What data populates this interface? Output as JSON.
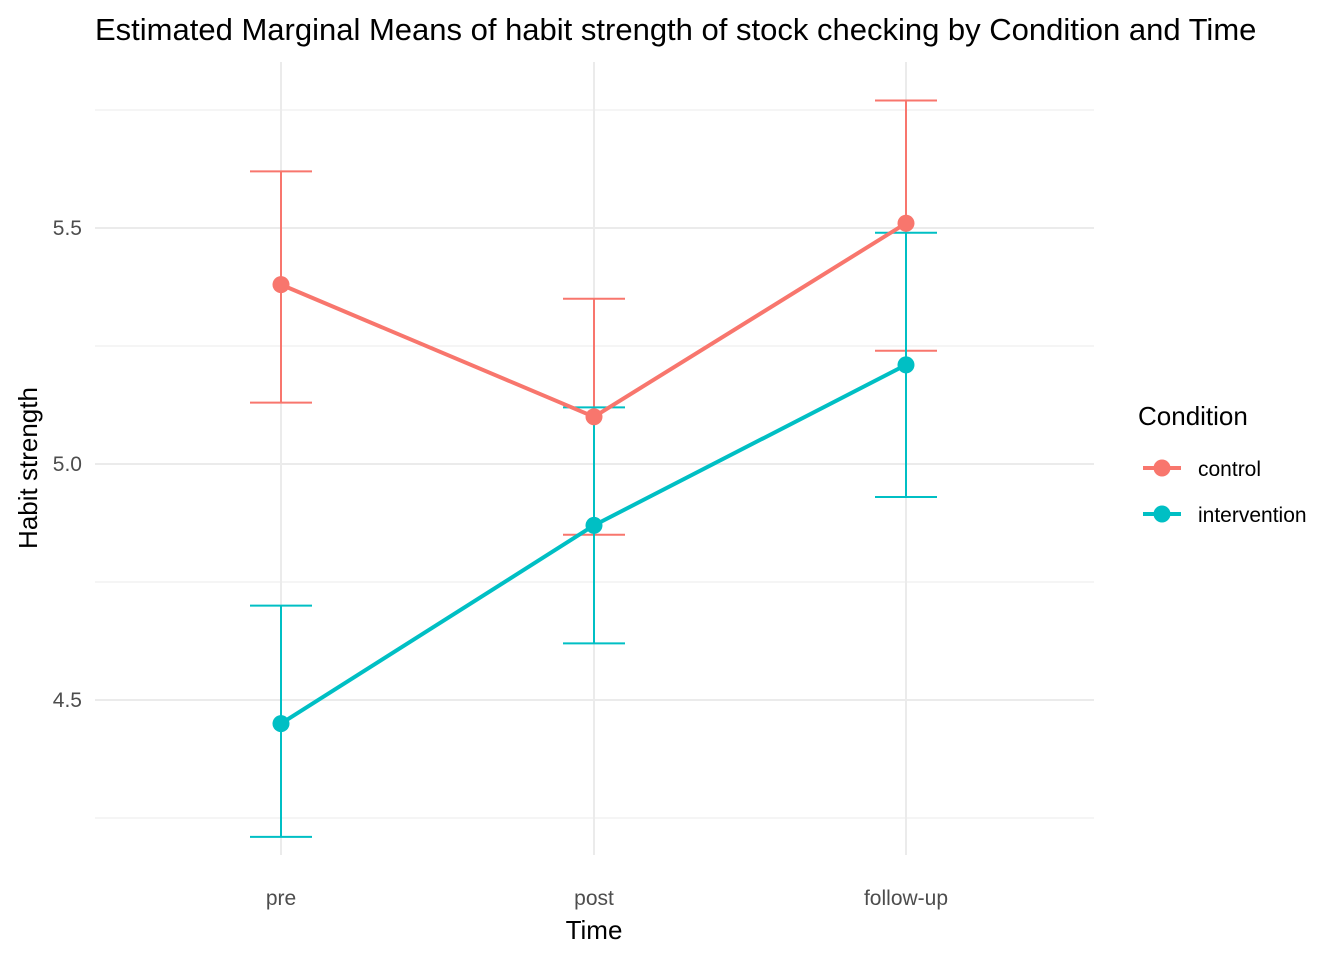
{
  "chart_data": {
    "type": "line",
    "title": "Estimated Marginal Means of habit strength of stock checking by Condition and Time",
    "xlabel": "Time",
    "ylabel": "Habit strength",
    "categories": [
      "pre",
      "post",
      "follow-up"
    ],
    "ylim": [
      4.19,
      5.84
    ],
    "y_ticks": [
      4.5,
      5.0,
      5.5
    ],
    "y_tick_labels": [
      "4.5",
      "5.0",
      "5.5"
    ],
    "grid": true,
    "legend": {
      "title": "Condition",
      "placement": "right"
    },
    "series": [
      {
        "name": "control",
        "color": "#F8766D",
        "values": [
          5.38,
          5.1,
          5.51
        ],
        "lower": [
          5.13,
          4.85,
          5.24
        ],
        "upper": [
          5.62,
          5.35,
          5.77
        ]
      },
      {
        "name": "intervention",
        "color": "#00BFC4",
        "values": [
          4.45,
          4.87,
          5.21
        ],
        "lower": [
          4.21,
          4.62,
          4.93
        ],
        "upper": [
          4.7,
          5.12,
          5.49
        ]
      }
    ]
  }
}
